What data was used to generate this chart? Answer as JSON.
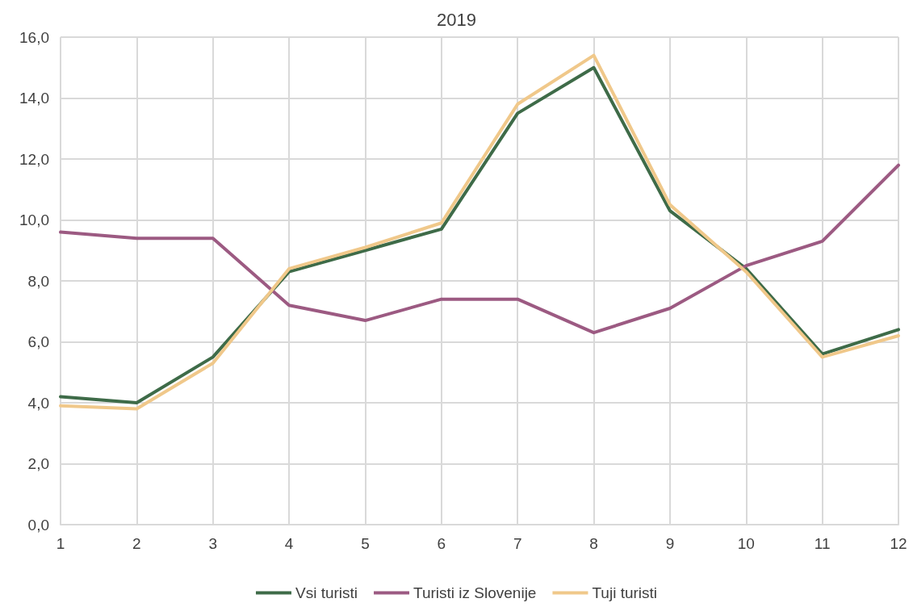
{
  "chart_data": {
    "type": "line",
    "title": "2019",
    "x": [
      1,
      2,
      3,
      4,
      5,
      6,
      7,
      8,
      9,
      10,
      11,
      12
    ],
    "xlim": [
      1,
      12
    ],
    "xticks": [
      1,
      2,
      3,
      4,
      5,
      6,
      7,
      8,
      9,
      10,
      11,
      12
    ],
    "series": [
      {
        "name": "Vsi turisti",
        "color": "#3e6b48",
        "values": [
          4.2,
          4.0,
          5.5,
          8.3,
          9.0,
          9.7,
          13.5,
          15.0,
          10.3,
          8.4,
          5.6,
          6.4
        ]
      },
      {
        "name": "Turisti iz Slovenije",
        "color": "#9c5a82",
        "values": [
          9.6,
          9.4,
          9.4,
          7.2,
          6.7,
          7.4,
          7.4,
          6.3,
          7.1,
          8.5,
          9.3,
          11.8
        ]
      },
      {
        "name": "Tuji turisti",
        "color": "#f0c88a",
        "values": [
          3.9,
          3.8,
          5.3,
          8.4,
          9.1,
          9.9,
          13.8,
          15.4,
          10.5,
          8.3,
          5.5,
          6.2
        ]
      }
    ],
    "ylim": [
      0,
      16
    ],
    "yticks": [
      {
        "value": 0,
        "label": "0,0"
      },
      {
        "value": 2,
        "label": "2,0"
      },
      {
        "value": 4,
        "label": "4,0"
      },
      {
        "value": 6,
        "label": "6,0"
      },
      {
        "value": 8,
        "label": "8,0"
      },
      {
        "value": 10,
        "label": "10,0"
      },
      {
        "value": 12,
        "label": "12,0"
      },
      {
        "value": 14,
        "label": "14,0"
      },
      {
        "value": 16,
        "label": "16,0"
      }
    ],
    "grid": true,
    "legend": "bottom",
    "marker": "none",
    "line_style": "solid"
  }
}
